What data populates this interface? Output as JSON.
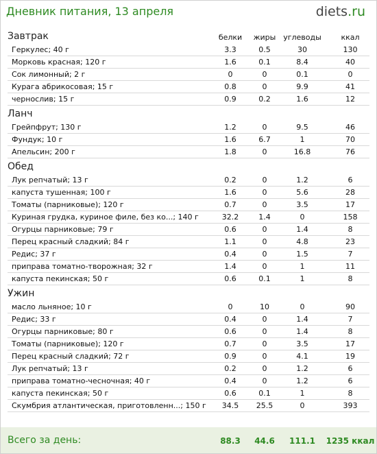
{
  "title": "Дневник питания, 13 апреля",
  "logo": {
    "main": "diets",
    "suffix": ".ru"
  },
  "columns": {
    "protein": "белки",
    "fat": "жиры",
    "carbs": "углеводы",
    "kcal": "ккал"
  },
  "sections": [
    {
      "name": "Завтрак",
      "items": [
        {
          "name": "Геркулес; 40 г",
          "protein": "3.3",
          "fat": "0.5",
          "carbs": "30",
          "kcal": "130"
        },
        {
          "name": "Морковь красная; 120 г",
          "protein": "1.6",
          "fat": "0.1",
          "carbs": "8.4",
          "kcal": "40"
        },
        {
          "name": "Сок лимонный; 2 г",
          "protein": "0",
          "fat": "0",
          "carbs": "0.1",
          "kcal": "0"
        },
        {
          "name": "Курага абрикосовая; 15 г",
          "protein": "0.8",
          "fat": "0",
          "carbs": "9.9",
          "kcal": "41"
        },
        {
          "name": "чернослив; 15 г",
          "protein": "0.9",
          "fat": "0.2",
          "carbs": "1.6",
          "kcal": "12"
        }
      ]
    },
    {
      "name": "Ланч",
      "items": [
        {
          "name": "Грейпфрут; 130 г",
          "protein": "1.2",
          "fat": "0",
          "carbs": "9.5",
          "kcal": "46"
        },
        {
          "name": "Фундук; 10 г",
          "protein": "1.6",
          "fat": "6.7",
          "carbs": "1",
          "kcal": "70"
        },
        {
          "name": "Апельсин; 200 г",
          "protein": "1.8",
          "fat": "0",
          "carbs": "16.8",
          "kcal": "76"
        }
      ]
    },
    {
      "name": "Обед",
      "items": [
        {
          "name": "Лук репчатый; 13 г",
          "protein": "0.2",
          "fat": "0",
          "carbs": "1.2",
          "kcal": "6"
        },
        {
          "name": "капуста тушенная; 100 г",
          "protein": "1.6",
          "fat": "0",
          "carbs": "5.6",
          "kcal": "28"
        },
        {
          "name": "Томаты (парниковые); 120 г",
          "protein": "0.7",
          "fat": "0",
          "carbs": "3.5",
          "kcal": "17"
        },
        {
          "name": "Куриная грудка, куриное филе, без ко...; 140 г",
          "protein": "32.2",
          "fat": "1.4",
          "carbs": "0",
          "kcal": "158"
        },
        {
          "name": "Огурцы парниковые; 79 г",
          "protein": "0.6",
          "fat": "0",
          "carbs": "1.4",
          "kcal": "8"
        },
        {
          "name": "Перец красный сладкий; 84 г",
          "protein": "1.1",
          "fat": "0",
          "carbs": "4.8",
          "kcal": "23"
        },
        {
          "name": "Редис; 37 г",
          "protein": "0.4",
          "fat": "0",
          "carbs": "1.5",
          "kcal": "7"
        },
        {
          "name": "приправа томатно-творожная; 32 г",
          "protein": "1.4",
          "fat": "0",
          "carbs": "1",
          "kcal": "11"
        },
        {
          "name": "капуста пекинская; 50 г",
          "protein": "0.6",
          "fat": "0.1",
          "carbs": "1",
          "kcal": "8"
        }
      ]
    },
    {
      "name": "Ужин",
      "items": [
        {
          "name": "масло льняное; 10 г",
          "protein": "0",
          "fat": "10",
          "carbs": "0",
          "kcal": "90"
        },
        {
          "name": "Редис; 33 г",
          "protein": "0.4",
          "fat": "0",
          "carbs": "1.4",
          "kcal": "7"
        },
        {
          "name": "Огурцы парниковые; 80 г",
          "protein": "0.6",
          "fat": "0",
          "carbs": "1.4",
          "kcal": "8"
        },
        {
          "name": "Томаты (парниковые); 120 г",
          "protein": "0.7",
          "fat": "0",
          "carbs": "3.5",
          "kcal": "17"
        },
        {
          "name": "Перец красный сладкий; 72 г",
          "protein": "0.9",
          "fat": "0",
          "carbs": "4.1",
          "kcal": "19"
        },
        {
          "name": "Лук репчатый; 13 г",
          "protein": "0.2",
          "fat": "0",
          "carbs": "1.2",
          "kcal": "6"
        },
        {
          "name": "приправа томатно-чесночная; 40 г",
          "protein": "0.4",
          "fat": "0",
          "carbs": "1.2",
          "kcal": "6"
        },
        {
          "name": "капуста пекинская; 50 г",
          "protein": "0.6",
          "fat": "0.1",
          "carbs": "1",
          "kcal": "8"
        },
        {
          "name": "Скумбрия атлантическая, приготовленн...; 150 г",
          "protein": "34.5",
          "fat": "25.5",
          "carbs": "0",
          "kcal": "393"
        }
      ]
    }
  ],
  "total": {
    "label": "Всего за день:",
    "protein": "88.3",
    "fat": "44.6",
    "carbs": "111.1",
    "kcal": "1235 ккал"
  },
  "colors": {
    "accent": "#2e8a22",
    "total_bg": "#eaf1e2",
    "divider": "#d8d8d8"
  }
}
